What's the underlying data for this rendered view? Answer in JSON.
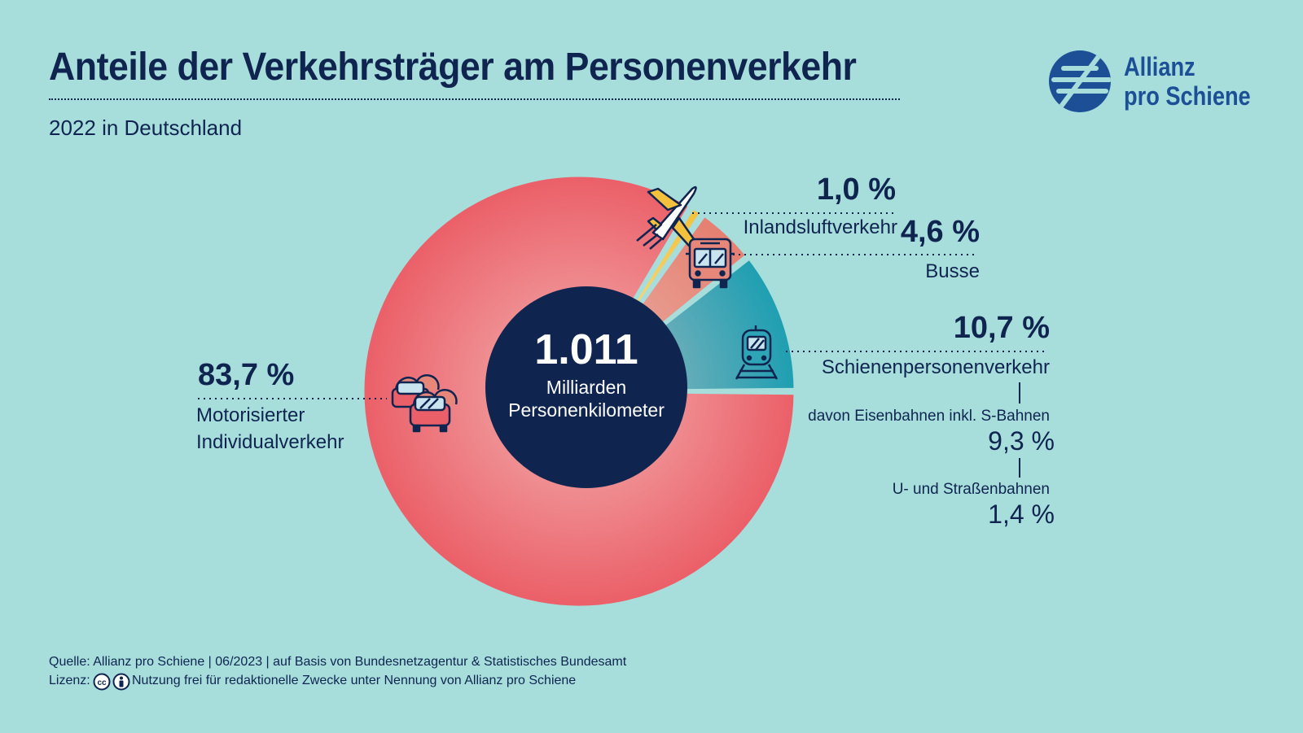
{
  "header": {
    "title": "Anteile der Verkehrsträger am Personenverkehr",
    "subtitle": "2022 in Deutschland"
  },
  "logo": {
    "line1": "Allianz",
    "line2": "pro Schiene",
    "color": "#1d4f96"
  },
  "center": {
    "value": "1.011",
    "unit_line1": "Milliarden",
    "unit_line2": "Personenkilometer"
  },
  "labels": {
    "miv_pct": "83,7 %",
    "miv_line1": "Motorisierter",
    "miv_line2": "Individualverkehr",
    "air_pct": "1,0 %",
    "air_name": "Inlandsluftverkehr",
    "bus_pct": "4,6 %",
    "bus_name": "Busse",
    "rail_pct": "10,7 %",
    "rail_name": "Schienenpersonenverkehr",
    "rail_sub1_name": "davon Eisenbahnen inkl. S-Bahnen",
    "rail_sub1_pct": "9,3 %",
    "rail_sub2_name": "U- und Straßenbahnen",
    "rail_sub2_pct": "1,4 %"
  },
  "footer": {
    "source": "Quelle: Allianz pro Schiene | 06/2023 | auf Basis von Bundesnetzagentur & Statistisches Bundesamt",
    "license_label": "Lizenz:",
    "license_text": "Nutzung frei für redaktionelle Zwecke unter Nennung von Allianz pro Schiene"
  },
  "icons": [
    "car-icon",
    "plane-icon",
    "bus-icon",
    "train-icon",
    "creative-commons-icon",
    "attribution-icon"
  ],
  "colors": {
    "background": "#a7dedc",
    "navy": "#0f2550",
    "miv": "#eb5f68",
    "bus": "#e7877a",
    "air": "#f3c13c",
    "rail": "#2ea5b6"
  },
  "chart_data": {
    "type": "pie",
    "categories": [
      "Schienenpersonenverkehr",
      "Motorisierter Individualverkehr",
      "Inlandsluftverkehr",
      "Busse"
    ],
    "values": [
      10.7,
      83.7,
      1.0,
      4.6
    ],
    "sub_values": {
      "Schienenpersonenverkehr": [
        {
          "name": "davon Eisenbahnen inkl. S-Bahnen",
          "value": 9.3
        },
        {
          "name": "U- und Straßenbahnen",
          "value": 1.4
        }
      ]
    },
    "total": "1.011",
    "unit": "%"
  }
}
